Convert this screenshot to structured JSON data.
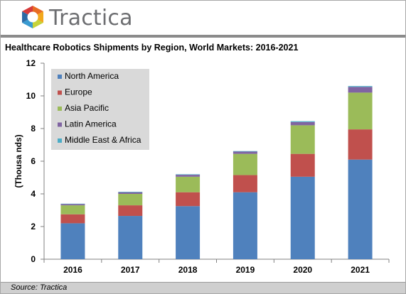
{
  "brand": {
    "name": "Tractica"
  },
  "chart_data": {
    "type": "bar",
    "stacked": true,
    "title": "Healthcare Robotics Shipments by Region, World Markets: 2016-2021",
    "ylabel": "(Thousa nds)",
    "xlabel": "",
    "ylim": [
      0,
      12
    ],
    "yticks": [
      "0",
      "2",
      "4",
      "6",
      "8",
      "10",
      "12"
    ],
    "categories": [
      "2016",
      "2017",
      "2018",
      "2019",
      "2020",
      "2021"
    ],
    "legend_position": "top-left",
    "grid": false,
    "series": [
      {
        "name": "North America",
        "color": "#4f81bd",
        "values": [
          2.2,
          2.65,
          3.25,
          4.1,
          5.05,
          6.1
        ]
      },
      {
        "name": "Europe",
        "color": "#c0504d",
        "values": [
          0.55,
          0.65,
          0.85,
          1.05,
          1.4,
          1.85
        ]
      },
      {
        "name": "Asia Pacific",
        "color": "#9bbb59",
        "values": [
          0.55,
          0.7,
          0.95,
          1.3,
          1.75,
          2.25
        ]
      },
      {
        "name": "Latin America",
        "color": "#8064a2",
        "values": [
          0.08,
          0.1,
          0.12,
          0.14,
          0.2,
          0.35
        ]
      },
      {
        "name": "Middle East & Africa",
        "color": "#4bacc6",
        "values": [
          0.02,
          0.03,
          0.03,
          0.03,
          0.05,
          0.05
        ]
      }
    ]
  },
  "footer": {
    "source": "Source: Tractica"
  }
}
